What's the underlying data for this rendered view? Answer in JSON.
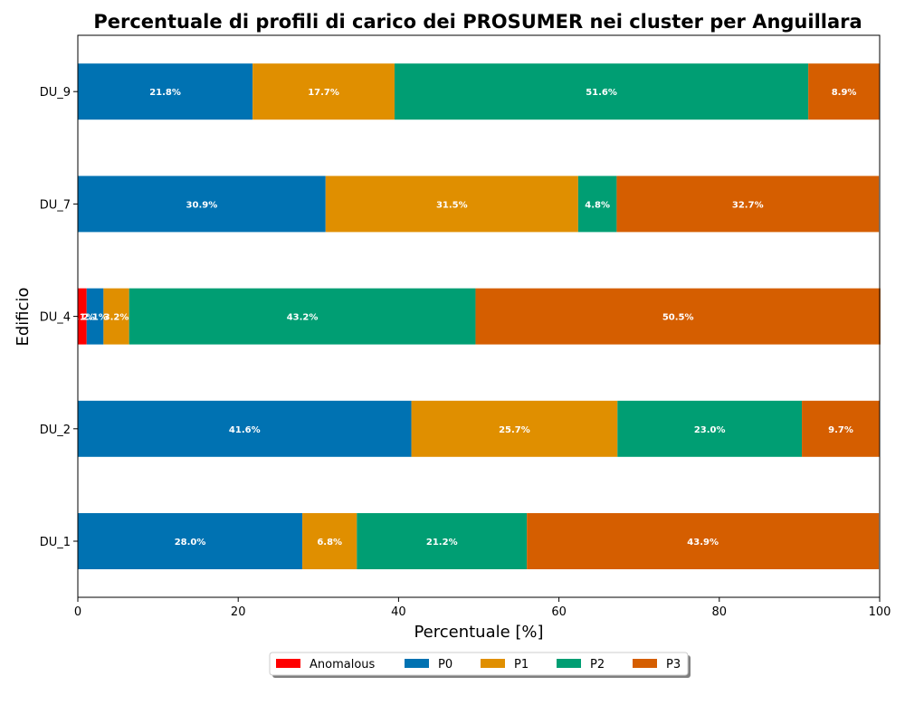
{
  "chart_data": {
    "type": "bar",
    "orientation": "horizontal",
    "stacked": true,
    "title": "Percentuale di profili di carico dei PROSUMER nei cluster per Anguillara",
    "xlabel": "Percentuale [%]",
    "ylabel": "Edificio",
    "xlim": [
      0,
      100
    ],
    "xticks": [
      0,
      20,
      40,
      60,
      80,
      100
    ],
    "grid": false,
    "legend_position": "bottom-center",
    "categories": [
      "DU_1",
      "DU_2",
      "DU_4",
      "DU_7",
      "DU_9"
    ],
    "series": [
      {
        "name": "Anomalous",
        "color": "#ff0000",
        "values": [
          0,
          0,
          1.1,
          0,
          0
        ],
        "labels": [
          "",
          "",
          "1.1%",
          "",
          ""
        ]
      },
      {
        "name": "P0",
        "color": "#0072b2",
        "values": [
          28.0,
          41.6,
          2.1,
          30.9,
          21.8
        ],
        "labels": [
          "28.0%",
          "41.6%",
          "2.1%",
          "30.9%",
          "21.8%"
        ]
      },
      {
        "name": "P1",
        "color": "#e08f00",
        "values": [
          6.8,
          25.7,
          3.2,
          31.5,
          17.7
        ],
        "labels": [
          "6.8%",
          "25.7%",
          "3.2%",
          "31.5%",
          "17.7%"
        ]
      },
      {
        "name": "P2",
        "color": "#009e73",
        "values": [
          21.2,
          23.0,
          43.2,
          4.8,
          51.6
        ],
        "labels": [
          "21.2%",
          "23.0%",
          "43.2%",
          "4.8%",
          "51.6%"
        ]
      },
      {
        "name": "P3",
        "color": "#d55e00",
        "values": [
          43.9,
          9.7,
          50.5,
          32.7,
          8.9
        ],
        "labels": [
          "43.9%",
          "9.7%",
          "50.5%",
          "32.7%",
          "8.9%"
        ]
      }
    ]
  }
}
